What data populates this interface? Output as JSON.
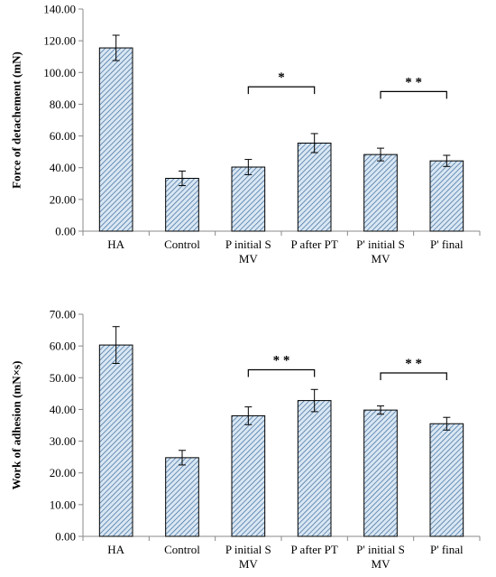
{
  "chart_data": [
    {
      "type": "bar",
      "ylabel": "Force of detachement (mN)",
      "ylim": [
        0,
        140
      ],
      "yticks": [
        "0.00",
        "20.00",
        "40.00",
        "60.00",
        "80.00",
        "100.00",
        "120.00",
        "140.00"
      ],
      "ytick_values": [
        0,
        20,
        40,
        60,
        80,
        100,
        120,
        140
      ],
      "categories": [
        [
          "HA"
        ],
        [
          "Control"
        ],
        [
          "P initial S",
          "MV"
        ],
        [
          "P after PT"
        ],
        [
          "P' initial S",
          "MV"
        ],
        [
          "P' final"
        ]
      ],
      "values": [
        115.5,
        33.3,
        40.4,
        55.5,
        48.3,
        44.3
      ],
      "errors": [
        8.0,
        4.6,
        4.8,
        6.0,
        4.0,
        3.5
      ],
      "bar_fill": "#d9e7f4",
      "bar_hatch": "#3d6a98",
      "bar_edge": "#000000",
      "grid": false,
      "significance": [
        {
          "from": 2,
          "to": 3,
          "label": "*",
          "y": 91
        },
        {
          "from": 4,
          "to": 5,
          "label": "* *",
          "y": 88
        }
      ]
    },
    {
      "type": "bar",
      "ylabel": "Work of adhesion (mN×s)",
      "ylim": [
        0,
        70
      ],
      "yticks": [
        "0.00",
        "10.00",
        "20.00",
        "30.00",
        "40.00",
        "50.00",
        "60.00",
        "70.00"
      ],
      "ytick_values": [
        0,
        10,
        20,
        30,
        40,
        50,
        60,
        70
      ],
      "categories": [
        [
          "HA"
        ],
        [
          "Control"
        ],
        [
          "P initial S",
          "MV"
        ],
        [
          "P after PT"
        ],
        [
          "P' initial S",
          "MV"
        ],
        [
          "P' final"
        ]
      ],
      "values": [
        60.3,
        24.8,
        38.0,
        42.8,
        39.8,
        35.5
      ],
      "errors": [
        5.8,
        2.3,
        2.8,
        3.5,
        1.3,
        2.0
      ],
      "bar_fill": "#d9e7f4",
      "bar_hatch": "#3d6a98",
      "bar_edge": "#000000",
      "grid": false,
      "significance": [
        {
          "from": 2,
          "to": 3,
          "label": "* *",
          "y": 52.5
        },
        {
          "from": 4,
          "to": 5,
          "label": "* *",
          "y": 51.5
        }
      ]
    }
  ]
}
